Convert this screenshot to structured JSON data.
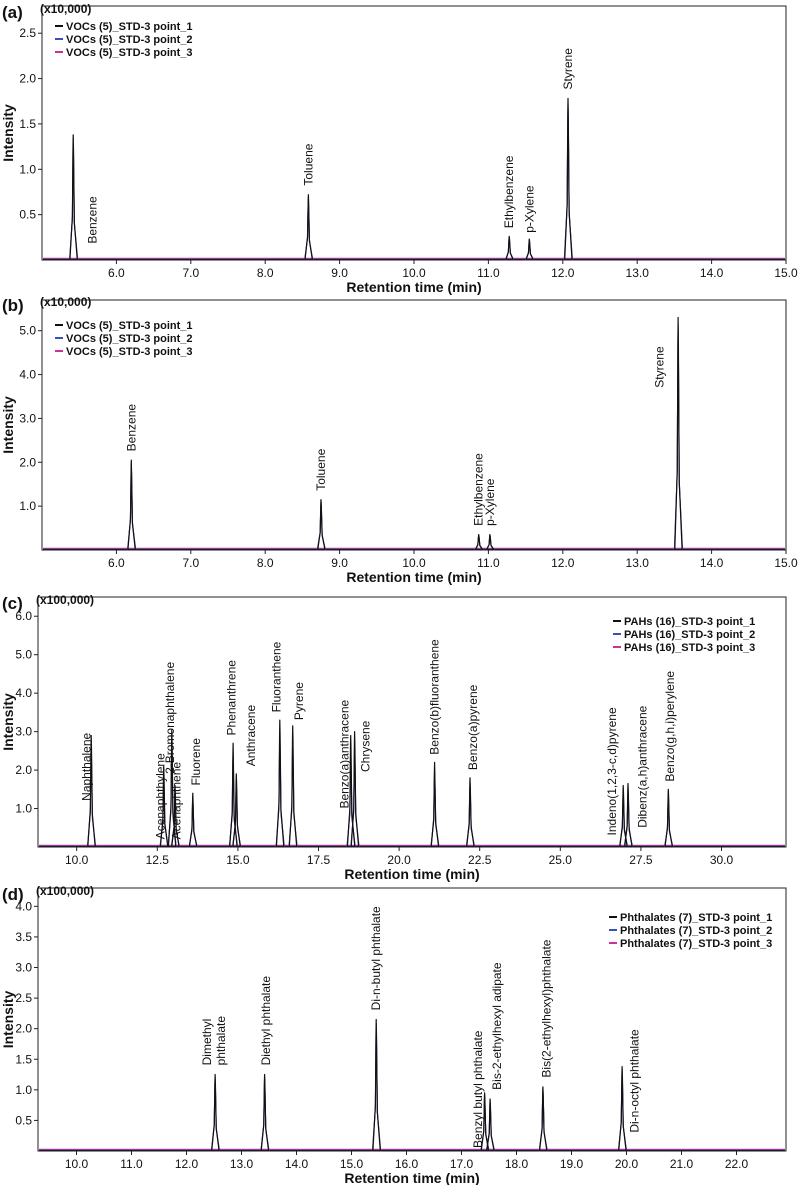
{
  "chart_data": [
    {
      "type": "line",
      "panel": "(a)",
      "multiplier": "(x10,000)",
      "xlabel": "Retention time (min)",
      "ylabel": "Intensity",
      "xlim": [
        5.0,
        15.0
      ],
      "ylim": [
        0,
        2.8
      ],
      "xticks": [
        6.0,
        7.0,
        8.0,
        9.0,
        10.0,
        11.0,
        12.0,
        13.0,
        14.0,
        15.0
      ],
      "yticks": [
        0.5,
        1.0,
        1.5,
        2.0,
        2.5
      ],
      "legend_position": "top-left",
      "series": [
        {
          "name": "VOCs (5)_STD-3 point_1",
          "color": "#111111",
          "scale": 1.0
        },
        {
          "name": "VOCs (5)_STD-3 point_2",
          "color": "#3a4fb8",
          "scale": 0.97
        },
        {
          "name": "VOCs (5)_STD-3 point_3",
          "color": "#cc3399",
          "scale": 0.94
        }
      ],
      "peaks": [
        {
          "x": 5.42,
          "y": 1.38,
          "label": "Benzene",
          "label_x": 5.68,
          "label_y": 0.18
        },
        {
          "x": 8.58,
          "y": 0.72,
          "label": "Toluene",
          "label_x": 8.58,
          "label_y": 0.82
        },
        {
          "x": 11.28,
          "y": 0.26,
          "label": "Ethylbenzene",
          "label_x": 11.28,
          "label_y": 0.35
        },
        {
          "x": 11.55,
          "y": 0.23,
          "label": "p-Xylene",
          "label_x": 11.55,
          "label_y": 0.3
        },
        {
          "x": 12.07,
          "y": 1.78,
          "label": "Styrene",
          "label_x": 12.07,
          "label_y": 1.88
        }
      ]
    },
    {
      "type": "line",
      "panel": "(b)",
      "multiplier": "(x10,000)",
      "xlabel": "Retention time (min)",
      "ylabel": "Intensity",
      "xlim": [
        5.0,
        15.0
      ],
      "ylim": [
        0,
        5.7
      ],
      "xticks": [
        6.0,
        7.0,
        8.0,
        9.0,
        10.0,
        11.0,
        12.0,
        13.0,
        14.0,
        15.0
      ],
      "yticks": [
        1.0,
        2.0,
        3.0,
        4.0,
        5.0
      ],
      "legend_position": "top-left",
      "series": [
        {
          "name": "VOCs (5)_STD-3 point_1",
          "color": "#111111",
          "scale": 1.0
        },
        {
          "name": "VOCs (5)_STD-3 point_2",
          "color": "#3a4fb8",
          "scale": 0.97
        },
        {
          "name": "VOCs (5)_STD-3 point_3",
          "color": "#cc3399",
          "scale": 0.94
        }
      ],
      "peaks": [
        {
          "x": 6.2,
          "y": 2.05,
          "label": "Benzene",
          "label_x": 6.2,
          "label_y": 2.25
        },
        {
          "x": 8.75,
          "y": 1.15,
          "label": "Toluene",
          "label_x": 8.75,
          "label_y": 1.35
        },
        {
          "x": 10.87,
          "y": 0.35,
          "label": "Ethylbenzene",
          "label_x": 10.87,
          "label_y": 0.55
        },
        {
          "x": 11.02,
          "y": 0.35,
          "label": "p-Xylene",
          "label_x": 11.02,
          "label_y": 0.55
        },
        {
          "x": 13.55,
          "y": 5.3,
          "label": "Styrene",
          "label_x": 13.3,
          "label_y": 3.7
        }
      ]
    },
    {
      "type": "line",
      "panel": "(c)",
      "multiplier": "(x100,000)",
      "xlabel": "Retention time (min)",
      "ylabel": "Intensity",
      "xlim": [
        8.8,
        32.0
      ],
      "ylim": [
        0,
        6.5
      ],
      "xticks": [
        10.0,
        12.5,
        15.0,
        17.5,
        20.0,
        22.5,
        25.0,
        27.5,
        30.0
      ],
      "yticks": [
        1.0,
        2.0,
        3.0,
        4.0,
        5.0,
        6.0
      ],
      "legend_position": "top-right",
      "series": [
        {
          "name": "PAHs (16)_STD-3 point_1",
          "color": "#111111",
          "scale": 1.0
        },
        {
          "name": "PAHs (16)_STD-3 point_2",
          "color": "#3a4fb8",
          "scale": 0.9
        },
        {
          "name": "PAHs (16)_STD-3 point_3",
          "color": "#cc3399",
          "scale": 0.85
        }
      ],
      "peaks": [
        {
          "x": 10.45,
          "y": 2.9,
          "label": "Naphthalene",
          "label_x": 10.3,
          "label_y": 1.2
        },
        {
          "x": 12.7,
          "y": 2.1,
          "label": "Acenaphthylene",
          "label_x": 12.6,
          "label_y": 0.2
        },
        {
          "x": 12.95,
          "y": 3.05,
          "label": "2-Bromonaphthalene",
          "label_x": 12.9,
          "label_y": 1.9
        },
        {
          "x": 13.05,
          "y": 1.6,
          "label": "Acenaphthene",
          "label_x": 13.1,
          "label_y": 0.2
        },
        {
          "x": 13.6,
          "y": 1.4,
          "label": "Fluorene",
          "label_x": 13.7,
          "label_y": 1.6
        },
        {
          "x": 14.85,
          "y": 2.7,
          "label": "Phenanthrene",
          "label_x": 14.8,
          "label_y": 2.9
        },
        {
          "x": 14.95,
          "y": 1.9,
          "label": "Anthracene",
          "label_x": 15.4,
          "label_y": 2.1
        },
        {
          "x": 16.3,
          "y": 3.3,
          "label": "Fluoranthene",
          "label_x": 16.2,
          "label_y": 3.5
        },
        {
          "x": 16.7,
          "y": 3.15,
          "label": "Pyrene",
          "label_x": 16.9,
          "label_y": 3.3
        },
        {
          "x": 18.5,
          "y": 2.9,
          "label": "Benzo(a)anthracene",
          "label_x": 18.3,
          "label_y": 1.0
        },
        {
          "x": 18.62,
          "y": 3.0,
          "label": "Chrysene",
          "label_x": 18.95,
          "label_y": 1.95
        },
        {
          "x": 21.1,
          "y": 2.2,
          "label": "Benzo(b)fluoranthene",
          "label_x": 21.1,
          "label_y": 2.4
        },
        {
          "x": 22.2,
          "y": 1.8,
          "label": "Benzo(a)pyrene",
          "label_x": 22.3,
          "label_y": 2.0
        },
        {
          "x": 26.95,
          "y": 1.6,
          "label": "Indeno(1,2,3-c,d)pyrene",
          "label_x": 26.6,
          "label_y": 0.3
        },
        {
          "x": 27.1,
          "y": 1.65,
          "label": "Dibenz(a,h)anthracene",
          "label_x": 27.55,
          "label_y": 0.5
        },
        {
          "x": 28.35,
          "y": 1.5,
          "label": "Benzo(g,h,i)perylene",
          "label_x": 28.4,
          "label_y": 1.7
        }
      ]
    },
    {
      "type": "line",
      "panel": "(d)",
      "multiplier": "(x100,000)",
      "xlabel": "Retention time (min)",
      "ylabel": "Intensity",
      "xlim": [
        9.3,
        22.9
      ],
      "ylim": [
        0,
        4.3
      ],
      "xticks": [
        10.0,
        11.0,
        12.0,
        13.0,
        14.0,
        15.0,
        16.0,
        17.0,
        18.0,
        19.0,
        20.0,
        21.0,
        22.0
      ],
      "yticks": [
        0.5,
        1.0,
        1.5,
        2.0,
        2.5,
        3.0,
        3.5,
        4.0
      ],
      "legend_position": "top-right",
      "series": [
        {
          "name": "Phthalates (7)_STD-3 point_1",
          "color": "#111111",
          "scale": 1.0
        },
        {
          "name": "Phthalates (7)_STD-3 point_2",
          "color": "#3a4fb8",
          "scale": 0.97
        },
        {
          "name": "Phthalates (7)_STD-3 point_3",
          "color": "#cc3399",
          "scale": 0.94
        }
      ],
      "peaks": [
        {
          "x": 12.52,
          "y": 1.25,
          "label": "Dimethyl phthalate",
          "label_lines": [
            "Dimethyl",
            "phthalate"
          ],
          "label_x": 12.5,
          "label_y": 1.4
        },
        {
          "x": 13.42,
          "y": 1.25,
          "label": "Diethyl phthalate",
          "label_x": 13.45,
          "label_y": 1.4
        },
        {
          "x": 15.45,
          "y": 2.15,
          "label": "Di-n-butyl phthalate",
          "label_x": 15.45,
          "label_y": 2.3
        },
        {
          "x": 17.42,
          "y": 0.95,
          "label": "Benzyl butyl phthalate",
          "label_x": 17.3,
          "label_y": 0.05
        },
        {
          "x": 17.52,
          "y": 0.85,
          "label": "Bis-2-ethylhexyl adipate",
          "label_x": 17.65,
          "label_y": 1.0
        },
        {
          "x": 18.48,
          "y": 1.05,
          "label": "Bis(2-ethylhexyl)phthalate",
          "label_x": 18.55,
          "label_y": 1.2
        },
        {
          "x": 19.92,
          "y": 1.38,
          "label": "Di-n-octyl phthalate",
          "label_x": 20.15,
          "label_y": 0.3
        }
      ]
    }
  ]
}
